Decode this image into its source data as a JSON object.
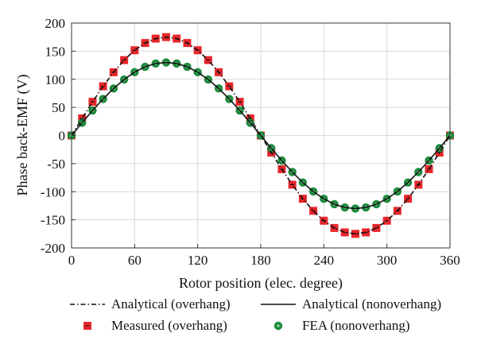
{
  "chart_data": {
    "type": "line",
    "title": "",
    "xlabel": "Rotor position (elec. degree)",
    "ylabel": "Phase back-EMF (V)",
    "xlim": [
      0,
      360
    ],
    "ylim": [
      -200,
      200
    ],
    "xticks": [
      0,
      60,
      120,
      180,
      240,
      300,
      360
    ],
    "yticks": [
      200,
      150,
      100,
      50,
      0,
      -50,
      -100,
      -150,
      -200
    ],
    "grid": true,
    "legend_position": "bottom",
    "x": [
      0,
      10,
      20,
      30,
      40,
      50,
      60,
      70,
      80,
      90,
      100,
      110,
      120,
      130,
      140,
      150,
      160,
      170,
      180,
      190,
      200,
      210,
      220,
      230,
      240,
      250,
      260,
      270,
      280,
      290,
      300,
      310,
      320,
      330,
      340,
      350,
      360
    ],
    "series": [
      {
        "name": "Analytical (overhang)",
        "style": "dash-dot",
        "color": "#111111",
        "values": [
          0,
          30.4,
          59.9,
          87.5,
          112.5,
          134.1,
          151.6,
          164.5,
          172.3,
          175,
          172.3,
          164.5,
          151.6,
          134.1,
          112.5,
          87.5,
          59.9,
          30.4,
          0,
          -30.4,
          -59.9,
          -87.5,
          -112.5,
          -134.1,
          -151.6,
          -164.5,
          -172.3,
          -175,
          -172.3,
          -164.5,
          -151.6,
          -134.1,
          -112.5,
          -87.5,
          -59.9,
          -30.4,
          0
        ]
      },
      {
        "name": "Analytical (nonoverhang)",
        "style": "solid",
        "color": "#111111",
        "values": [
          0,
          22.6,
          44.5,
          65,
          83.6,
          99.6,
          112.6,
          122.2,
          128,
          130,
          128,
          122.2,
          112.6,
          99.6,
          83.6,
          65,
          44.5,
          22.6,
          0,
          -22.6,
          -44.5,
          -65,
          -83.6,
          -99.6,
          -112.6,
          -122.2,
          -128,
          -130,
          -128,
          -122.2,
          -112.6,
          -99.6,
          -83.6,
          -65,
          -44.5,
          -22.6,
          0
        ]
      },
      {
        "name": "Measured (overhang)",
        "style": "square-marker",
        "color": "#e8262b",
        "values": [
          0,
          30.4,
          59.9,
          87.5,
          112.5,
          134.1,
          151.6,
          164.5,
          172.3,
          175,
          172.3,
          164.5,
          151.6,
          134.1,
          112.5,
          87.5,
          59.9,
          30.4,
          0,
          -30.4,
          -59.9,
          -87.5,
          -112.5,
          -134.1,
          -151.6,
          -164.5,
          -172.3,
          -175,
          -172.3,
          -164.5,
          -151.6,
          -134.1,
          -112.5,
          -87.5,
          -59.9,
          -30.4,
          0
        ]
      },
      {
        "name": "FEA (nonoverhang)",
        "style": "circle-marker",
        "color": "#1c8a3c",
        "values": [
          0,
          22.6,
          44.5,
          65,
          83.6,
          99.6,
          112.6,
          122.2,
          128,
          130,
          128,
          122.2,
          112.6,
          99.6,
          83.6,
          65,
          44.5,
          22.6,
          0,
          -22.6,
          -44.5,
          -65,
          -83.6,
          -99.6,
          -112.6,
          -122.2,
          -128,
          -130,
          -128,
          -122.2,
          -112.6,
          -99.6,
          -83.6,
          -65,
          -44.5,
          -22.6,
          0
        ]
      }
    ]
  }
}
